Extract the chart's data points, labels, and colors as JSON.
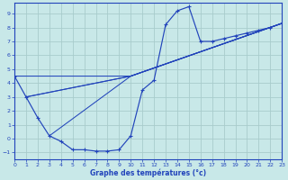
{
  "xlabel": "Graphe des températures (°c)",
  "bg_color": "#c8e8e8",
  "grid_color": "#a8cccc",
  "line_color": "#2244bb",
  "xlim": [
    0,
    23
  ],
  "ylim": [
    -1.5,
    9.8
  ],
  "xticks": [
    0,
    1,
    2,
    3,
    4,
    5,
    6,
    7,
    8,
    9,
    10,
    11,
    12,
    13,
    14,
    15,
    16,
    17,
    18,
    19,
    20,
    21,
    22,
    23
  ],
  "yticks": [
    -1,
    0,
    1,
    2,
    3,
    4,
    5,
    6,
    7,
    8,
    9
  ],
  "main_x": [
    0,
    1,
    2,
    3,
    4,
    5,
    6,
    7,
    8,
    9,
    10,
    11,
    12,
    13,
    14,
    15,
    16,
    17,
    18,
    19,
    20,
    21,
    22,
    23
  ],
  "main_y": [
    4.5,
    3.0,
    1.5,
    0.2,
    -0.2,
    -0.8,
    -0.8,
    -0.9,
    -0.9,
    -0.8,
    0.2,
    3.5,
    4.2,
    8.2,
    9.2,
    9.5,
    7.0,
    7.0,
    7.2,
    7.4,
    7.6,
    7.8,
    8.0,
    8.3
  ],
  "straight_lines": [
    {
      "x": [
        1,
        10,
        23
      ],
      "y": [
        3.0,
        4.5,
        8.3
      ]
    },
    {
      "x": [
        1,
        10,
        23
      ],
      "y": [
        3.0,
        4.5,
        8.3
      ]
    },
    {
      "x": [
        0,
        10,
        23
      ],
      "y": [
        4.5,
        4.5,
        8.3
      ]
    },
    {
      "x": [
        3,
        10,
        23
      ],
      "y": [
        0.2,
        4.5,
        8.3
      ]
    }
  ]
}
